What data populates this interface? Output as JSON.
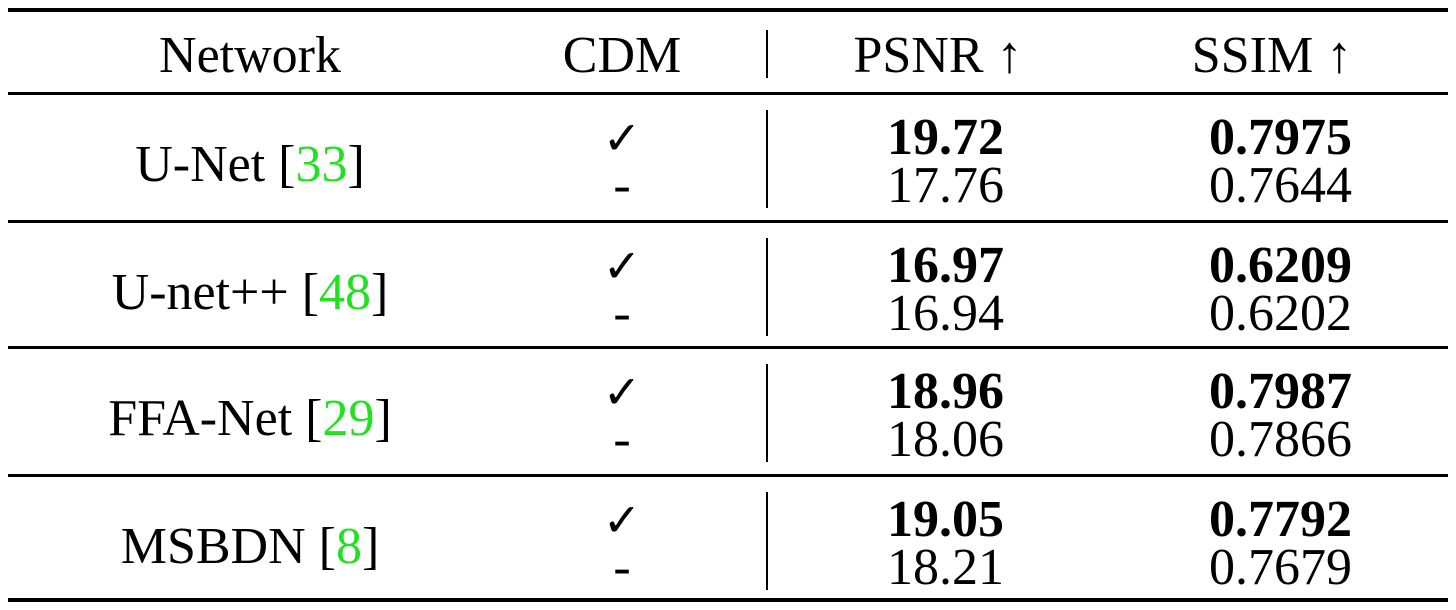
{
  "table": {
    "headers": {
      "network": "Network",
      "cdm": "CDM",
      "psnr": "PSNR ↑",
      "ssim": "SSIM ↑"
    },
    "rows": [
      {
        "network": "U-Net [",
        "cite": "33",
        "close": "]",
        "cdm_yes": "✓",
        "cdm_no": "-",
        "psnr_with": "19.72",
        "psnr_without": "17.76",
        "ssim_with": "0.7975",
        "ssim_without": "0.7644"
      },
      {
        "network": "U-net++ [",
        "cite": "48",
        "close": "]",
        "cdm_yes": "✓",
        "cdm_no": "-",
        "psnr_with": "16.97",
        "psnr_without": "16.94",
        "ssim_with": "0.6209",
        "ssim_without": "0.6202"
      },
      {
        "network": "FFA-Net [",
        "cite": "29",
        "close": "]",
        "cdm_yes": "✓",
        "cdm_no": "-",
        "psnr_with": "18.96",
        "psnr_without": "18.06",
        "ssim_with": "0.7987",
        "ssim_without": "0.7866"
      },
      {
        "network": "MSBDN [",
        "cite": "8",
        "close": "]",
        "cdm_yes": "✓",
        "cdm_no": "-",
        "psnr_with": "19.05",
        "psnr_without": "18.21",
        "ssim_with": "0.7792",
        "ssim_without": "0.7679"
      }
    ],
    "colors": {
      "citation": "#22e022",
      "text": "#000000"
    }
  }
}
